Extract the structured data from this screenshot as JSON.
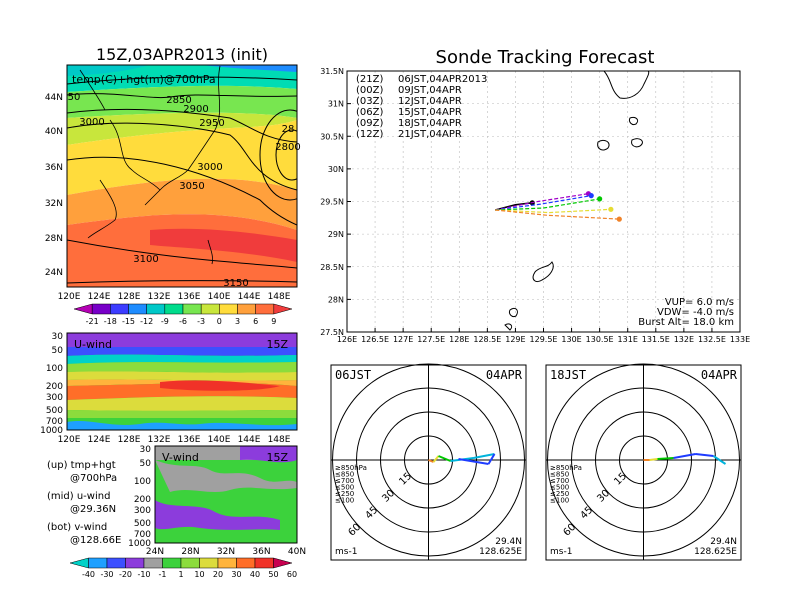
{
  "left": {
    "title": "15Z,03APR2013 (init)",
    "map_label": "temp(C)+hgt(m)@700hPa",
    "lat_labels": [
      "44N",
      "40N",
      "36N",
      "32N",
      "28N",
      "24N"
    ],
    "lon_labels": [
      "120E",
      "124E",
      "128E",
      "132E",
      "136E",
      "140E",
      "144E",
      "148E"
    ],
    "contour_labels": [
      "2850",
      "2900",
      "2950",
      "3000",
      "3000",
      "3050",
      "3100",
      "3150",
      "2800",
      "28",
      "50"
    ],
    "temp_colorbar": [
      "-21",
      "-18",
      "-15",
      "-12",
      "-9",
      "-6",
      "-3",
      "0",
      "3",
      "6",
      "9"
    ],
    "uwind_label": "U-wind",
    "uwind_time": "15Z",
    "pressure_labels": [
      "30",
      "50",
      "100",
      "200",
      "300",
      "500",
      "700",
      "1000"
    ],
    "vwind_label": "V-wind",
    "vwind_time": "15Z",
    "vwind_lat_labels": [
      "24N",
      "28N",
      "32N",
      "36N",
      "40N"
    ],
    "wind_colorbar": [
      "-40",
      "-30",
      "-20",
      "-10",
      "-1",
      "1",
      "10",
      "20",
      "30",
      "40",
      "50",
      "60"
    ],
    "notes": [
      "(up) tmp+hgt",
      "@700hPa",
      "(mid) u-wind",
      "@29.36N",
      "(bot) v-wind",
      "@128.66E"
    ]
  },
  "chart_data": {
    "type": "scatter",
    "title": "Sonde Tracking Forecast",
    "x_ticks": [
      "126E",
      "126.5E",
      "127E",
      "127.5E",
      "128E",
      "128.5E",
      "129E",
      "129.5E",
      "130E",
      "130.5E",
      "131E",
      "131.5E",
      "132E",
      "132.5E",
      "133E"
    ],
    "y_ticks": [
      "27.5N",
      "28N",
      "28.5N",
      "29N",
      "29.5N",
      "30N",
      "30.5N",
      "31N",
      "31.5N"
    ],
    "xlim": [
      126,
      133
    ],
    "ylim": [
      27.5,
      31.5
    ],
    "legend": [
      {
        "code": "(21Z)",
        "time": "06JST,04APR2013",
        "color": "#000000"
      },
      {
        "code": "(00Z)",
        "time": "09JST,04APR",
        "color": "#a000c8"
      },
      {
        "code": "(03Z)",
        "time": "12JST,04APR",
        "color": "#1e3cff"
      },
      {
        "code": "(06Z)",
        "time": "15JST,04APR",
        "color": "#00c800"
      },
      {
        "code": "(09Z)",
        "time": "18JST,04APR",
        "color": "#e6dc32"
      },
      {
        "code": "(12Z)",
        "time": "21JST,04APR",
        "color": "#f08228"
      }
    ],
    "series": [
      {
        "name": "06JST,04APR2013",
        "color": "#000000",
        "points": [
          [
            128.64,
            29.37
          ],
          [
            129.0,
            29.45
          ],
          [
            129.3,
            29.48
          ]
        ]
      },
      {
        "name": "09JST,04APR",
        "color": "#a000c8",
        "points": [
          [
            128.64,
            29.37
          ],
          [
            129.4,
            29.5
          ],
          [
            130.3,
            29.62
          ]
        ]
      },
      {
        "name": "12JST,04APR",
        "color": "#1e3cff",
        "points": [
          [
            128.64,
            29.37
          ],
          [
            129.45,
            29.46
          ],
          [
            130.35,
            29.59
          ]
        ]
      },
      {
        "name": "15JST,04APR",
        "color": "#00c800",
        "points": [
          [
            128.64,
            29.37
          ],
          [
            129.5,
            29.4
          ],
          [
            130.5,
            29.54
          ]
        ]
      },
      {
        "name": "18JST,04APR",
        "color": "#e6dc32",
        "points": [
          [
            128.64,
            29.37
          ],
          [
            129.6,
            29.33
          ],
          [
            130.7,
            29.38
          ]
        ]
      },
      {
        "name": "21JST,04APR",
        "color": "#f08228",
        "points": [
          [
            128.64,
            29.37
          ],
          [
            129.55,
            29.29
          ],
          [
            130.85,
            29.23
          ]
        ]
      }
    ],
    "params": [
      "VUP=  6.0  m/s",
      "VDW= -4.0  m/s",
      "Burst Alt=  18.0  km"
    ]
  },
  "polar": [
    {
      "time": "06JST",
      "date": "04APR",
      "lat": "29.4N",
      "lon": "128.625E",
      "unit": "ms-1",
      "ring_labels": [
        "15",
        "30",
        "45",
        "60"
      ],
      "pressure_legend": [
        "≥850hPa",
        "≤850",
        "≤700",
        "≤500",
        "≤250",
        "≤100"
      ],
      "pressure_colors": [
        "#e60000",
        "#f08228",
        "#e6dc32",
        "#00c800",
        "#00b4dc",
        "#1e3cff"
      ]
    },
    {
      "time": "18JST",
      "date": "04APR",
      "lat": "29.4N",
      "lon": "128.625E",
      "unit": "ms-1",
      "ring_labels": [
        "15",
        "30",
        "45",
        "60"
      ],
      "pressure_legend": [
        "≥850hPa",
        "≤850",
        "≤700",
        "≤500",
        "≤250",
        "≤100"
      ],
      "pressure_colors": [
        "#e60000",
        "#f08228",
        "#e6dc32",
        "#00c800",
        "#00b4dc",
        "#1e3cff"
      ]
    }
  ],
  "colors": {
    "temp_scale": [
      "#b400b4",
      "#7800c8",
      "#3c3cff",
      "#1e8cff",
      "#00c8c8",
      "#00dc8c",
      "#78e650",
      "#c8e63c",
      "#ffdc3c",
      "#ffa03c",
      "#ff6e3c",
      "#f03c3c"
    ],
    "wind_scale": [
      "#00d2c8",
      "#1ea0ff",
      "#3c50ff",
      "#8c3cdc",
      "#a0a0a0",
      "#3cd23c",
      "#8cdc3c",
      "#dcdc3c",
      "#ffb43c",
      "#ff6e28",
      "#f03228",
      "#c80050"
    ]
  }
}
